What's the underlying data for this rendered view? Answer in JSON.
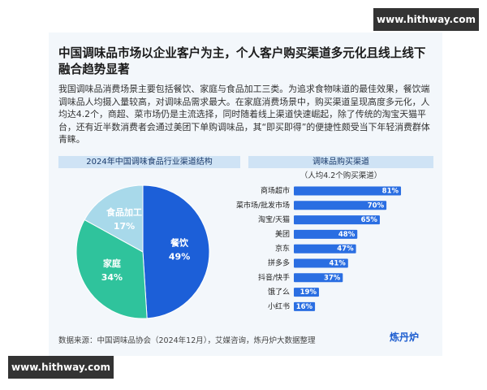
{
  "title": "中国调味品市场以企业客户为主，个人客户购买渠道多元化且线上线下融合趋势显著",
  "description": "我国调味品消费场景主要包括餐饮、家庭与食品加工三类。为追求食物味道的最佳效果，餐饮端调味品人均摄入量较高，对调味品需求最大。在家庭消费场景中，购买渠道呈现高度多元化，人均达4.2个，商超、菜市场仍是主流选择，同时随着线上渠道快速崛起，除了传统的淘宝天猫平台，还有近半数消费者会通过美团下单购调味品，其“即买即得”的便捷性颇受当下年轻消费群体青睐。",
  "chart_data": [
    {
      "type": "pie",
      "title": "2024年中国调味食品行业渠道结构",
      "categories": [
        "餐饮",
        "家庭",
        "食品加工"
      ],
      "values": [
        49,
        34,
        17
      ],
      "value_labels": [
        "49%",
        "34%",
        "17%"
      ],
      "colors": [
        "#1c5fd8",
        "#2fc39c",
        "#a8d9ea"
      ]
    },
    {
      "type": "bar",
      "title": "调味品购买渠道",
      "subtitle": "（人均4.2个购买渠道）",
      "categories": [
        "商场超市",
        "菜市场/批发市场",
        "淘宝/天猫",
        "美团",
        "京东",
        "拼多多",
        "抖音/快手",
        "饿了么",
        "小红书"
      ],
      "values": [
        81,
        70,
        65,
        48,
        47,
        41,
        37,
        19,
        16
      ],
      "value_labels": [
        "81%",
        "70%",
        "65%",
        "48%",
        "47%",
        "41%",
        "37%",
        "19%",
        "16%"
      ],
      "color": "#2a6ee2"
    }
  ],
  "source": "数据来源：中国调味品协会（2024年12月），艾媒咨询，炼丹炉大数据整理",
  "logo": "炼丹炉",
  "watermarks": [
    "www.hithway.com",
    "www.hithway.com"
  ]
}
